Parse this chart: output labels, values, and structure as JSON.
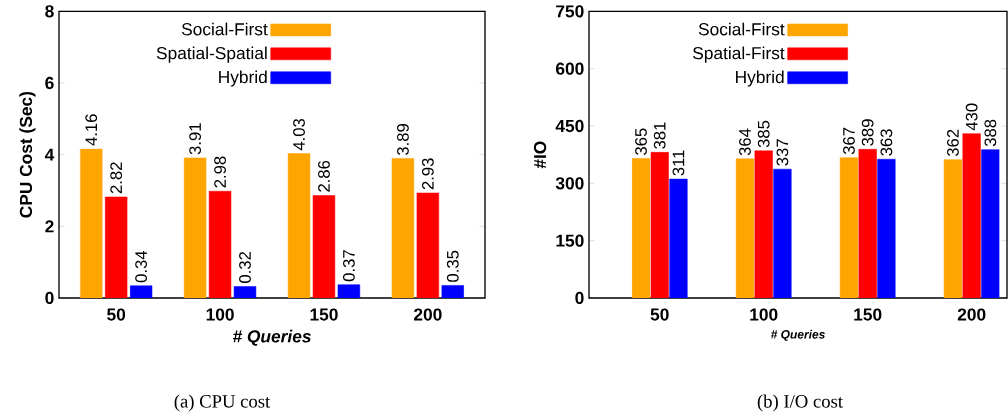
{
  "chart_data": [
    {
      "type": "bar",
      "categories": [
        "50",
        "100",
        "150",
        "200"
      ],
      "xlabel": "# Queries",
      "ylabel": "CPU Cost (Sec)",
      "ylim": [
        0,
        8
      ],
      "yticks": [
        0,
        2,
        4,
        6,
        8
      ],
      "legend": "top",
      "data_labels": true,
      "series": [
        {
          "name": "Social-First",
          "color": "#ffa500",
          "values": [
            4.16,
            3.91,
            4.03,
            3.89
          ]
        },
        {
          "name": "Spatial-Spatial",
          "color": "#ff0000",
          "values": [
            2.82,
            2.98,
            2.86,
            2.93
          ]
        },
        {
          "name": "Hybrid",
          "color": "#0000ff",
          "values": [
            0.34,
            0.32,
            0.37,
            0.35
          ]
        }
      ],
      "annotations": [
        "(a) CPU cost"
      ]
    },
    {
      "type": "bar",
      "categories": [
        "50",
        "100",
        "150",
        "200"
      ],
      "xlabel": "# Queries",
      "ylabel": "#IO",
      "ylim": [
        0,
        750
      ],
      "yticks": [
        0,
        150,
        300,
        450,
        600,
        750
      ],
      "legend": "top",
      "data_labels": true,
      "series": [
        {
          "name": "Social-First",
          "color": "#ffa500",
          "values": [
            365,
            364,
            367,
            362
          ]
        },
        {
          "name": "Spatial-First",
          "color": "#ff0000",
          "values": [
            381,
            385,
            389,
            430
          ]
        },
        {
          "name": "Hybrid",
          "color": "#0000ff",
          "values": [
            311,
            337,
            363,
            388
          ]
        }
      ],
      "annotations": [
        "(b) I/O cost"
      ]
    }
  ]
}
